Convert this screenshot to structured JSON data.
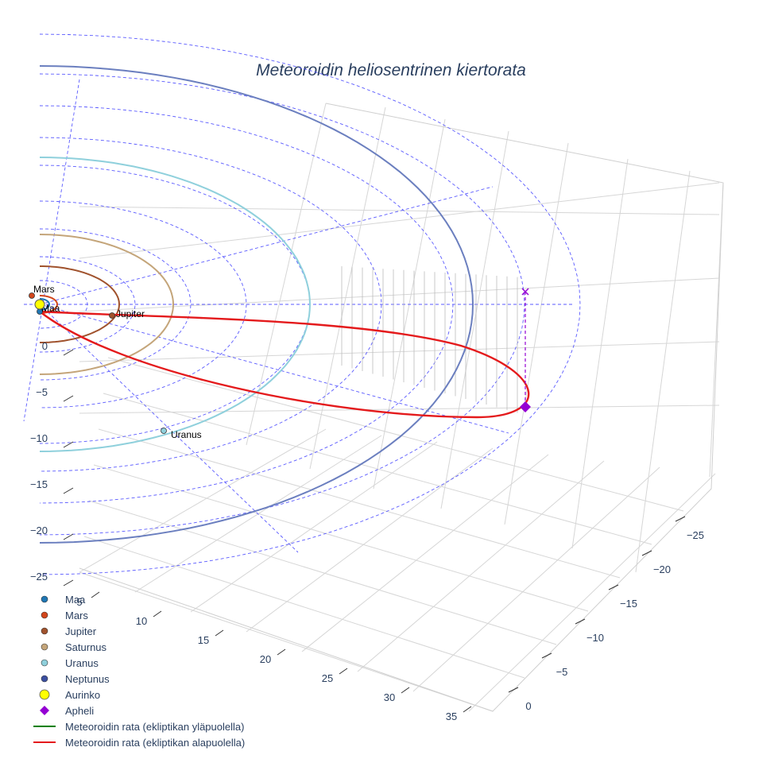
{
  "chart_data": {
    "type": "3d-scatter-line",
    "title": "Meteoroidin heliosentrinen kiertorata",
    "axes": {
      "x_ticks": [
        "5",
        "10",
        "15",
        "20",
        "25",
        "30",
        "35"
      ],
      "y_ticks": [
        "0",
        "−5",
        "−10",
        "−15",
        "−20",
        "−25"
      ],
      "z_ticks": [
        "0",
        "−5",
        "−10",
        "−15",
        "−20",
        "−25"
      ]
    },
    "grid": true,
    "legend_position": "bottom-left",
    "bodies": [
      {
        "name": "Maa",
        "color": "#1f77b4",
        "label": "Maa",
        "label_shown": true
      },
      {
        "name": "Mars",
        "color": "#d2461b",
        "label": "Mars",
        "label_shown": true
      },
      {
        "name": "Jupiter",
        "color": "#a0522d",
        "label": "Jupiter",
        "label_shown": true
      },
      {
        "name": "Saturnus",
        "color": "#c4a57a",
        "label": "Saturnus",
        "label_shown": false
      },
      {
        "name": "Uranus",
        "color": "#8fd0dc",
        "label": "Uranus",
        "label_shown": true
      },
      {
        "name": "Neptunus",
        "color": "#3b4fa0",
        "label": "Neptunus",
        "label_shown": false
      },
      {
        "name": "Aurinko",
        "color": "#ffff00",
        "label": "Aurinko",
        "label_shown": false
      }
    ],
    "series": [
      {
        "name": "Meteoroidin rata (ekliptikan yläpuolella)",
        "color": "#008000"
      },
      {
        "name": "Meteoroidin rata (ekliptikan alapuolella)",
        "color": "#e41a1c"
      }
    ],
    "markers": [
      {
        "name": "Apheli",
        "color": "#9400d3",
        "symbol": "diamond"
      }
    ],
    "legend": [
      {
        "label": "Maa",
        "kind": "dot",
        "color": "#1f77b4"
      },
      {
        "label": "Mars",
        "kind": "dot",
        "color": "#d2461b"
      },
      {
        "label": "Jupiter",
        "kind": "dot",
        "color": "#a0522d"
      },
      {
        "label": "Saturnus",
        "kind": "dot",
        "color": "#c4a57a"
      },
      {
        "label": "Uranus",
        "kind": "dot",
        "color": "#8fd0dc"
      },
      {
        "label": "Neptunus",
        "kind": "dot",
        "color": "#3b4fa0"
      },
      {
        "label": "Aurinko",
        "kind": "sun",
        "color": "#ffff00"
      },
      {
        "label": "Apheli",
        "kind": "diamond",
        "color": "#9400d3"
      },
      {
        "label": "Meteoroidin rata (ekliptikan yläpuolella)",
        "kind": "line",
        "color": "#008000"
      },
      {
        "label": "Meteoroidin rata (ekliptikan alapuolella)",
        "kind": "line",
        "color": "#e41a1c"
      }
    ]
  }
}
